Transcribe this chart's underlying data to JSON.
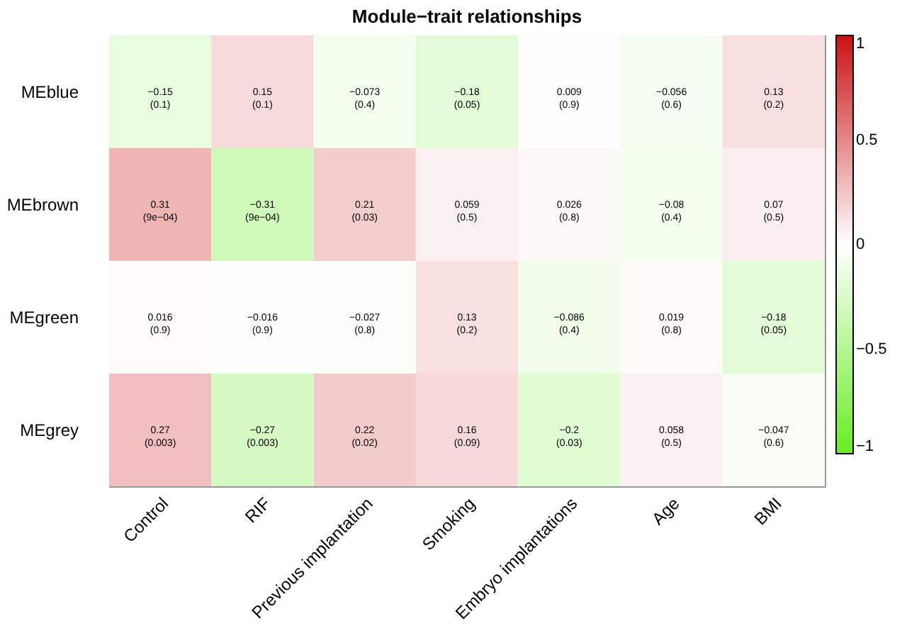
{
  "chart_data": {
    "type": "heatmap",
    "title": "Module−trait relationships",
    "categories": [
      "Control",
      "RIF",
      "Previous implantation",
      "Smoking",
      "Embryo implantations",
      "Age",
      "BMI"
    ],
    "y_categories": [
      "MEblue",
      "MEbrown",
      "MEgreen",
      "MEgrey"
    ],
    "cells": [
      [
        -0.15,
        0.15,
        -0.073,
        -0.18,
        0.009,
        -0.056,
        0.13
      ],
      [
        0.31,
        -0.31,
        0.21,
        0.059,
        0.026,
        -0.08,
        0.07
      ],
      [
        0.016,
        -0.016,
        -0.027,
        0.13,
        -0.086,
        0.019,
        -0.18
      ],
      [
        0.27,
        -0.27,
        0.22,
        0.16,
        -0.2,
        0.058,
        -0.047
      ]
    ],
    "cell_labels": [
      [
        "−0.15\n(0.1)",
        "0.15\n(0.1)",
        "−0.073\n(0.4)",
        "−0.18\n(0.05)",
        "0.009\n(0.9)",
        "−0.056\n(0.6)",
        "0.13\n(0.2)"
      ],
      [
        "0.31\n(9e−04)",
        "−0.31\n(9e−04)",
        "0.21\n(0.03)",
        "0.059\n(0.5)",
        "0.026\n(0.8)",
        "−0.08\n(0.4)",
        "0.07\n(0.5)"
      ],
      [
        "0.016\n(0.9)",
        "−0.016\n(0.9)",
        "−0.027\n(0.8)",
        "0.13\n(0.2)",
        "−0.086\n(0.4)",
        "0.019\n(0.8)",
        "−0.18\n(0.05)"
      ],
      [
        "0.27\n(0.003)",
        "−0.27\n(0.003)",
        "0.22\n(0.02)",
        "0.16\n(0.09)",
        "−0.2\n(0.03)",
        "0.058\n(0.5)",
        "−0.047\n(0.6)"
      ]
    ],
    "clim": [
      -1,
      1
    ],
    "cticks": [
      {
        "value": -1,
        "label": "−1"
      },
      {
        "value": -0.5,
        "label": "−0.5"
      },
      0,
      0.5,
      1
    ]
  }
}
